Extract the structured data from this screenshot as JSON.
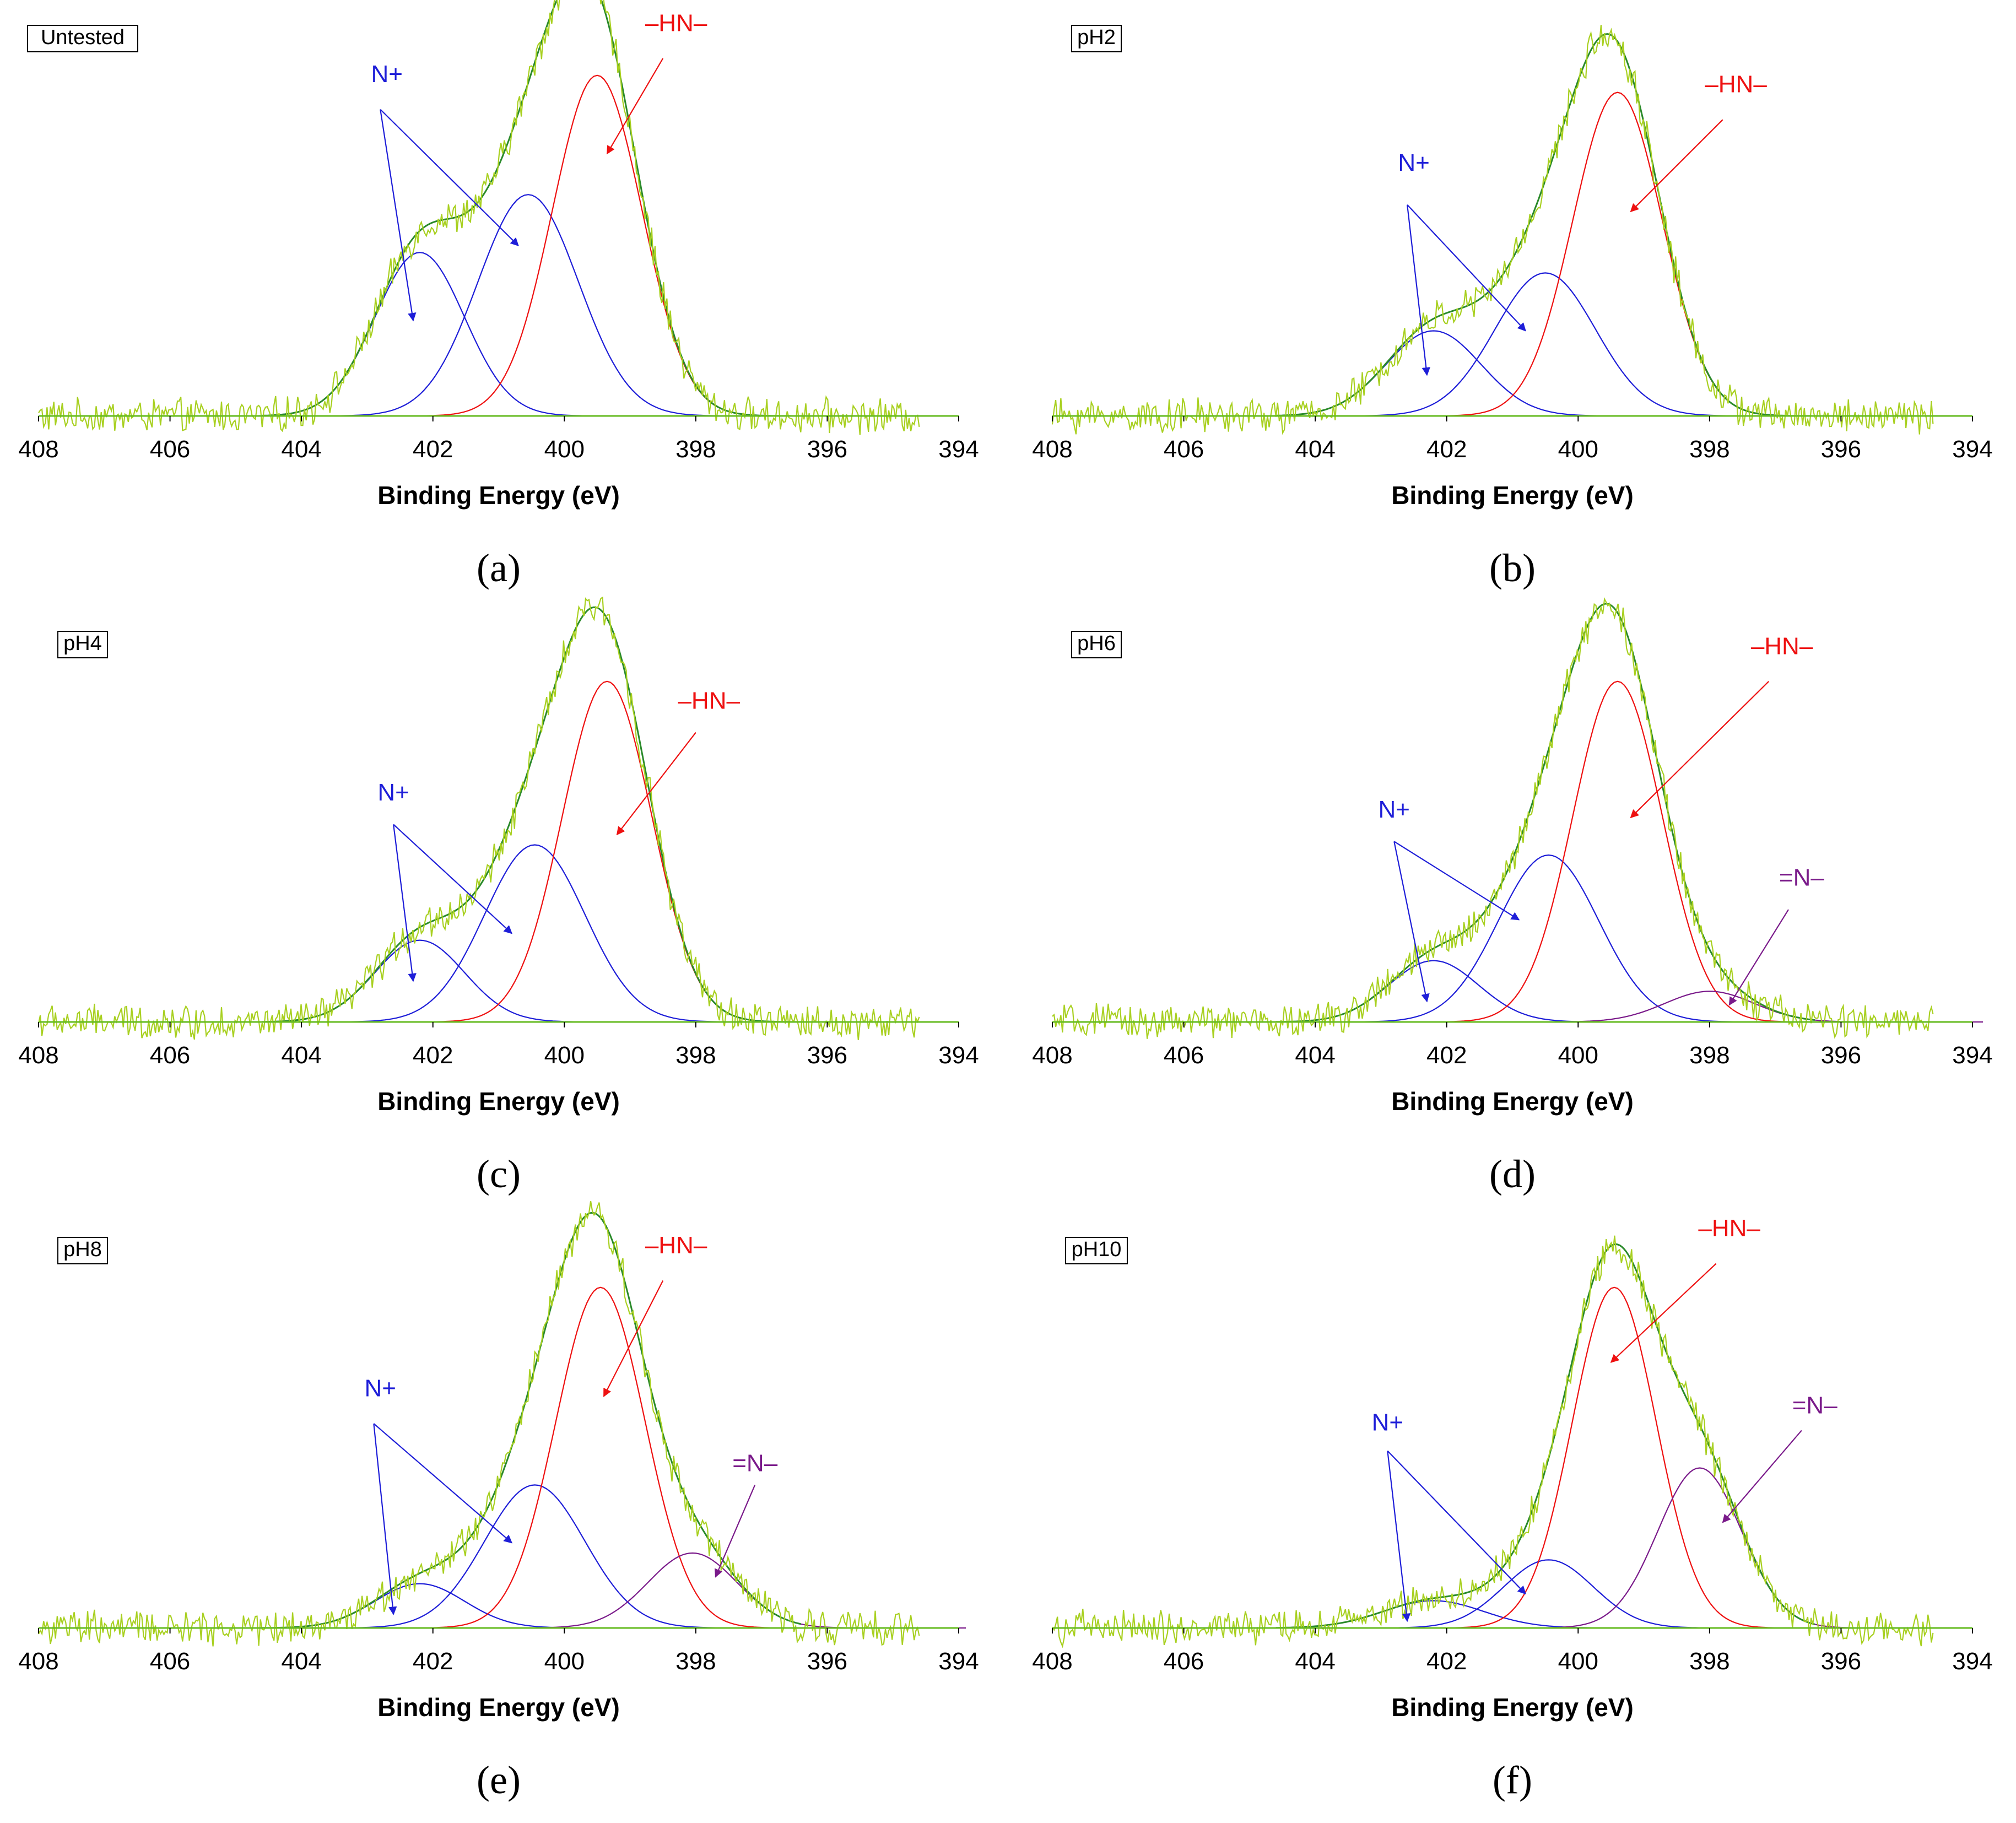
{
  "chart_data": [
    {
      "panel": "(a)",
      "badge": "Untested",
      "type": "line",
      "xlabel": "Binding Energy (eV)",
      "xlim": [
        408,
        394
      ],
      "xticks": [
        408,
        406,
        404,
        402,
        400,
        398,
        396,
        394
      ],
      "ylim": [
        0,
        1.1
      ],
      "components": [
        {
          "name": "N+",
          "color": "#1e1ed8",
          "center": 402.2,
          "height": 0.48,
          "fwhm": 1.6
        },
        {
          "name": "N+",
          "color": "#1e1ed8",
          "center": 400.55,
          "height": 0.65,
          "fwhm": 1.8
        },
        {
          "name": "–HN–",
          "color": "#ee1111",
          "center": 399.5,
          "height": 1.0,
          "fwhm": 1.6
        }
      ],
      "annotations": [
        {
          "text": "N+",
          "color": "#1e1ed8",
          "label_at": [
            402.7,
            0.98
          ],
          "arrow_from": [
            402.8,
            0.9
          ],
          "arrow_to": [
            [
              402.3,
              0.28
            ],
            [
              400.7,
              0.5
            ]
          ]
        },
        {
          "text": "–HN–",
          "color": "#ee1111",
          "label_at": [
            398.3,
            1.13
          ],
          "arrow_from": [
            398.5,
            1.05
          ],
          "arrow_to": [
            [
              399.35,
              0.77
            ]
          ]
        }
      ]
    },
    {
      "panel": "(b)",
      "badge": "pH2",
      "type": "line",
      "xlabel": "Binding Energy (eV)",
      "xlim": [
        408,
        394
      ],
      "xticks": [
        408,
        406,
        404,
        402,
        400,
        398,
        396,
        394
      ],
      "ylim": [
        0,
        1.1
      ],
      "components": [
        {
          "name": "N+",
          "color": "#1e1ed8",
          "center": 402.2,
          "height": 0.25,
          "fwhm": 1.7
        },
        {
          "name": "N+",
          "color": "#1e1ed8",
          "center": 400.5,
          "height": 0.42,
          "fwhm": 1.8
        },
        {
          "name": "–HN–",
          "color": "#ee1111",
          "center": 399.4,
          "height": 0.95,
          "fwhm": 1.6
        }
      ],
      "annotations": [
        {
          "text": "N+",
          "color": "#1e1ed8",
          "label_at": [
            402.5,
            0.72
          ],
          "arrow_from": [
            402.6,
            0.62
          ],
          "arrow_to": [
            [
              402.3,
              0.12
            ],
            [
              400.8,
              0.25
            ]
          ]
        },
        {
          "text": "–HN–",
          "color": "#ee1111",
          "label_at": [
            397.6,
            0.95
          ],
          "arrow_from": [
            397.8,
            0.87
          ],
          "arrow_to": [
            [
              399.2,
              0.6
            ]
          ]
        }
      ]
    },
    {
      "panel": "(c)",
      "badge": "pH4",
      "type": "line",
      "xlabel": "Binding Energy (eV)",
      "xlim": [
        408,
        394
      ],
      "xticks": [
        408,
        406,
        404,
        402,
        400,
        398,
        396,
        394
      ],
      "ylim": [
        0,
        1.1
      ],
      "components": [
        {
          "name": "N+",
          "color": "#1e1ed8",
          "center": 402.2,
          "height": 0.24,
          "fwhm": 1.6
        },
        {
          "name": "N+",
          "color": "#1e1ed8",
          "center": 400.45,
          "height": 0.52,
          "fwhm": 1.8
        },
        {
          "name": "–HN–",
          "color": "#ee1111",
          "center": 399.35,
          "height": 1.0,
          "fwhm": 1.6
        }
      ],
      "annotations": [
        {
          "text": "N+",
          "color": "#1e1ed8",
          "label_at": [
            402.6,
            0.65
          ],
          "arrow_from": [
            402.6,
            0.58
          ],
          "arrow_to": [
            [
              402.3,
              0.12
            ],
            [
              400.8,
              0.26
            ]
          ]
        },
        {
          "text": "–HN–",
          "color": "#ee1111",
          "label_at": [
            397.8,
            0.92
          ],
          "arrow_from": [
            398.0,
            0.85
          ],
          "arrow_to": [
            [
              399.2,
              0.55
            ]
          ]
        }
      ]
    },
    {
      "panel": "(d)",
      "badge": "pH6",
      "type": "line",
      "xlabel": "Binding Energy (eV)",
      "xlim": [
        408,
        394
      ],
      "xticks": [
        408,
        406,
        404,
        402,
        400,
        398,
        396,
        394
      ],
      "ylim": [
        0,
        1.1
      ],
      "components": [
        {
          "name": "N+",
          "color": "#1e1ed8",
          "center": 402.2,
          "height": 0.18,
          "fwhm": 1.6
        },
        {
          "name": "N+",
          "color": "#1e1ed8",
          "center": 400.45,
          "height": 0.49,
          "fwhm": 1.8
        },
        {
          "name": "–HN–",
          "color": "#ee1111",
          "center": 399.4,
          "height": 1.0,
          "fwhm": 1.6
        },
        {
          "name": "=N–",
          "color": "#7a1a8a",
          "center": 398.0,
          "height": 0.09,
          "fwhm": 1.6
        }
      ],
      "annotations": [
        {
          "text": "N+",
          "color": "#1e1ed8",
          "label_at": [
            402.8,
            0.6
          ],
          "arrow_from": [
            402.8,
            0.53
          ],
          "arrow_to": [
            [
              402.3,
              0.06
            ],
            [
              400.9,
              0.3
            ]
          ]
        },
        {
          "text": "–HN–",
          "color": "#ee1111",
          "label_at": [
            396.9,
            1.08
          ],
          "arrow_from": [
            397.1,
            1.0
          ],
          "arrow_to": [
            [
              399.2,
              0.6
            ]
          ]
        },
        {
          "text": "=N–",
          "color": "#7a1a8a",
          "label_at": [
            396.6,
            0.4
          ],
          "arrow_from": [
            396.8,
            0.33
          ],
          "arrow_to": [
            [
              397.7,
              0.05
            ]
          ]
        }
      ]
    },
    {
      "panel": "(e)",
      "badge": "pH8",
      "type": "line",
      "xlabel": "Binding Energy (eV)",
      "xlim": [
        408,
        394
      ],
      "xticks": [
        408,
        406,
        404,
        402,
        400,
        398,
        396,
        394
      ],
      "ylim": [
        0,
        1.1
      ],
      "components": [
        {
          "name": "N+",
          "color": "#1e1ed8",
          "center": 402.2,
          "height": 0.13,
          "fwhm": 1.6
        },
        {
          "name": "N+",
          "color": "#1e1ed8",
          "center": 400.45,
          "height": 0.42,
          "fwhm": 1.8
        },
        {
          "name": "–HN–",
          "color": "#ee1111",
          "center": 399.45,
          "height": 1.0,
          "fwhm": 1.6
        },
        {
          "name": "=N–",
          "color": "#7a1a8a",
          "center": 398.05,
          "height": 0.22,
          "fwhm": 1.6
        }
      ],
      "annotations": [
        {
          "text": "N+",
          "color": "#1e1ed8",
          "label_at": [
            402.8,
            0.68
          ],
          "arrow_from": [
            402.9,
            0.6
          ],
          "arrow_to": [
            [
              402.6,
              0.04
            ],
            [
              400.8,
              0.25
            ]
          ]
        },
        {
          "text": "–HN–",
          "color": "#ee1111",
          "label_at": [
            398.3,
            1.1
          ],
          "arrow_from": [
            398.5,
            1.02
          ],
          "arrow_to": [
            [
              399.4,
              0.68
            ]
          ]
        },
        {
          "text": "=N–",
          "color": "#7a1a8a",
          "label_at": [
            397.1,
            0.46
          ],
          "arrow_from": [
            397.1,
            0.42
          ],
          "arrow_to": [
            [
              397.7,
              0.15
            ]
          ]
        }
      ]
    },
    {
      "panel": "(f)",
      "badge": "pH10",
      "type": "line",
      "xlabel": "Binding Energy (eV)",
      "xlim": [
        408,
        394
      ],
      "xticks": [
        408,
        406,
        404,
        402,
        400,
        398,
        396,
        394
      ],
      "ylim": [
        0,
        1.1
      ],
      "components": [
        {
          "name": "N+",
          "color": "#1e1ed8",
          "center": 402.2,
          "height": 0.08,
          "fwhm": 1.8
        },
        {
          "name": "N+",
          "color": "#1e1ed8",
          "center": 400.45,
          "height": 0.2,
          "fwhm": 1.6
        },
        {
          "name": "–HN–",
          "color": "#ee1111",
          "center": 399.45,
          "height": 1.0,
          "fwhm": 1.5
        },
        {
          "name": "=N–",
          "color": "#7a1a8a",
          "center": 398.15,
          "height": 0.47,
          "fwhm": 1.5
        }
      ],
      "annotations": [
        {
          "text": "N+",
          "color": "#1e1ed8",
          "label_at": [
            402.9,
            0.58
          ],
          "arrow_from": [
            402.9,
            0.52
          ],
          "arrow_to": [
            [
              402.6,
              0.02
            ],
            [
              400.8,
              0.1
            ]
          ]
        },
        {
          "text": "–HN–",
          "color": "#ee1111",
          "label_at": [
            397.7,
            1.15
          ],
          "arrow_from": [
            397.9,
            1.07
          ],
          "arrow_to": [
            [
              399.5,
              0.78
            ]
          ]
        },
        {
          "text": "=N–",
          "color": "#7a1a8a",
          "label_at": [
            396.4,
            0.63
          ],
          "arrow_from": [
            396.6,
            0.58
          ],
          "arrow_to": [
            [
              397.8,
              0.31
            ]
          ]
        }
      ]
    }
  ],
  "colors": {
    "baseline_axis": "#66bb22",
    "raw_spectrum": "#a8d020",
    "envelope_fit": "#2a8a2a"
  }
}
